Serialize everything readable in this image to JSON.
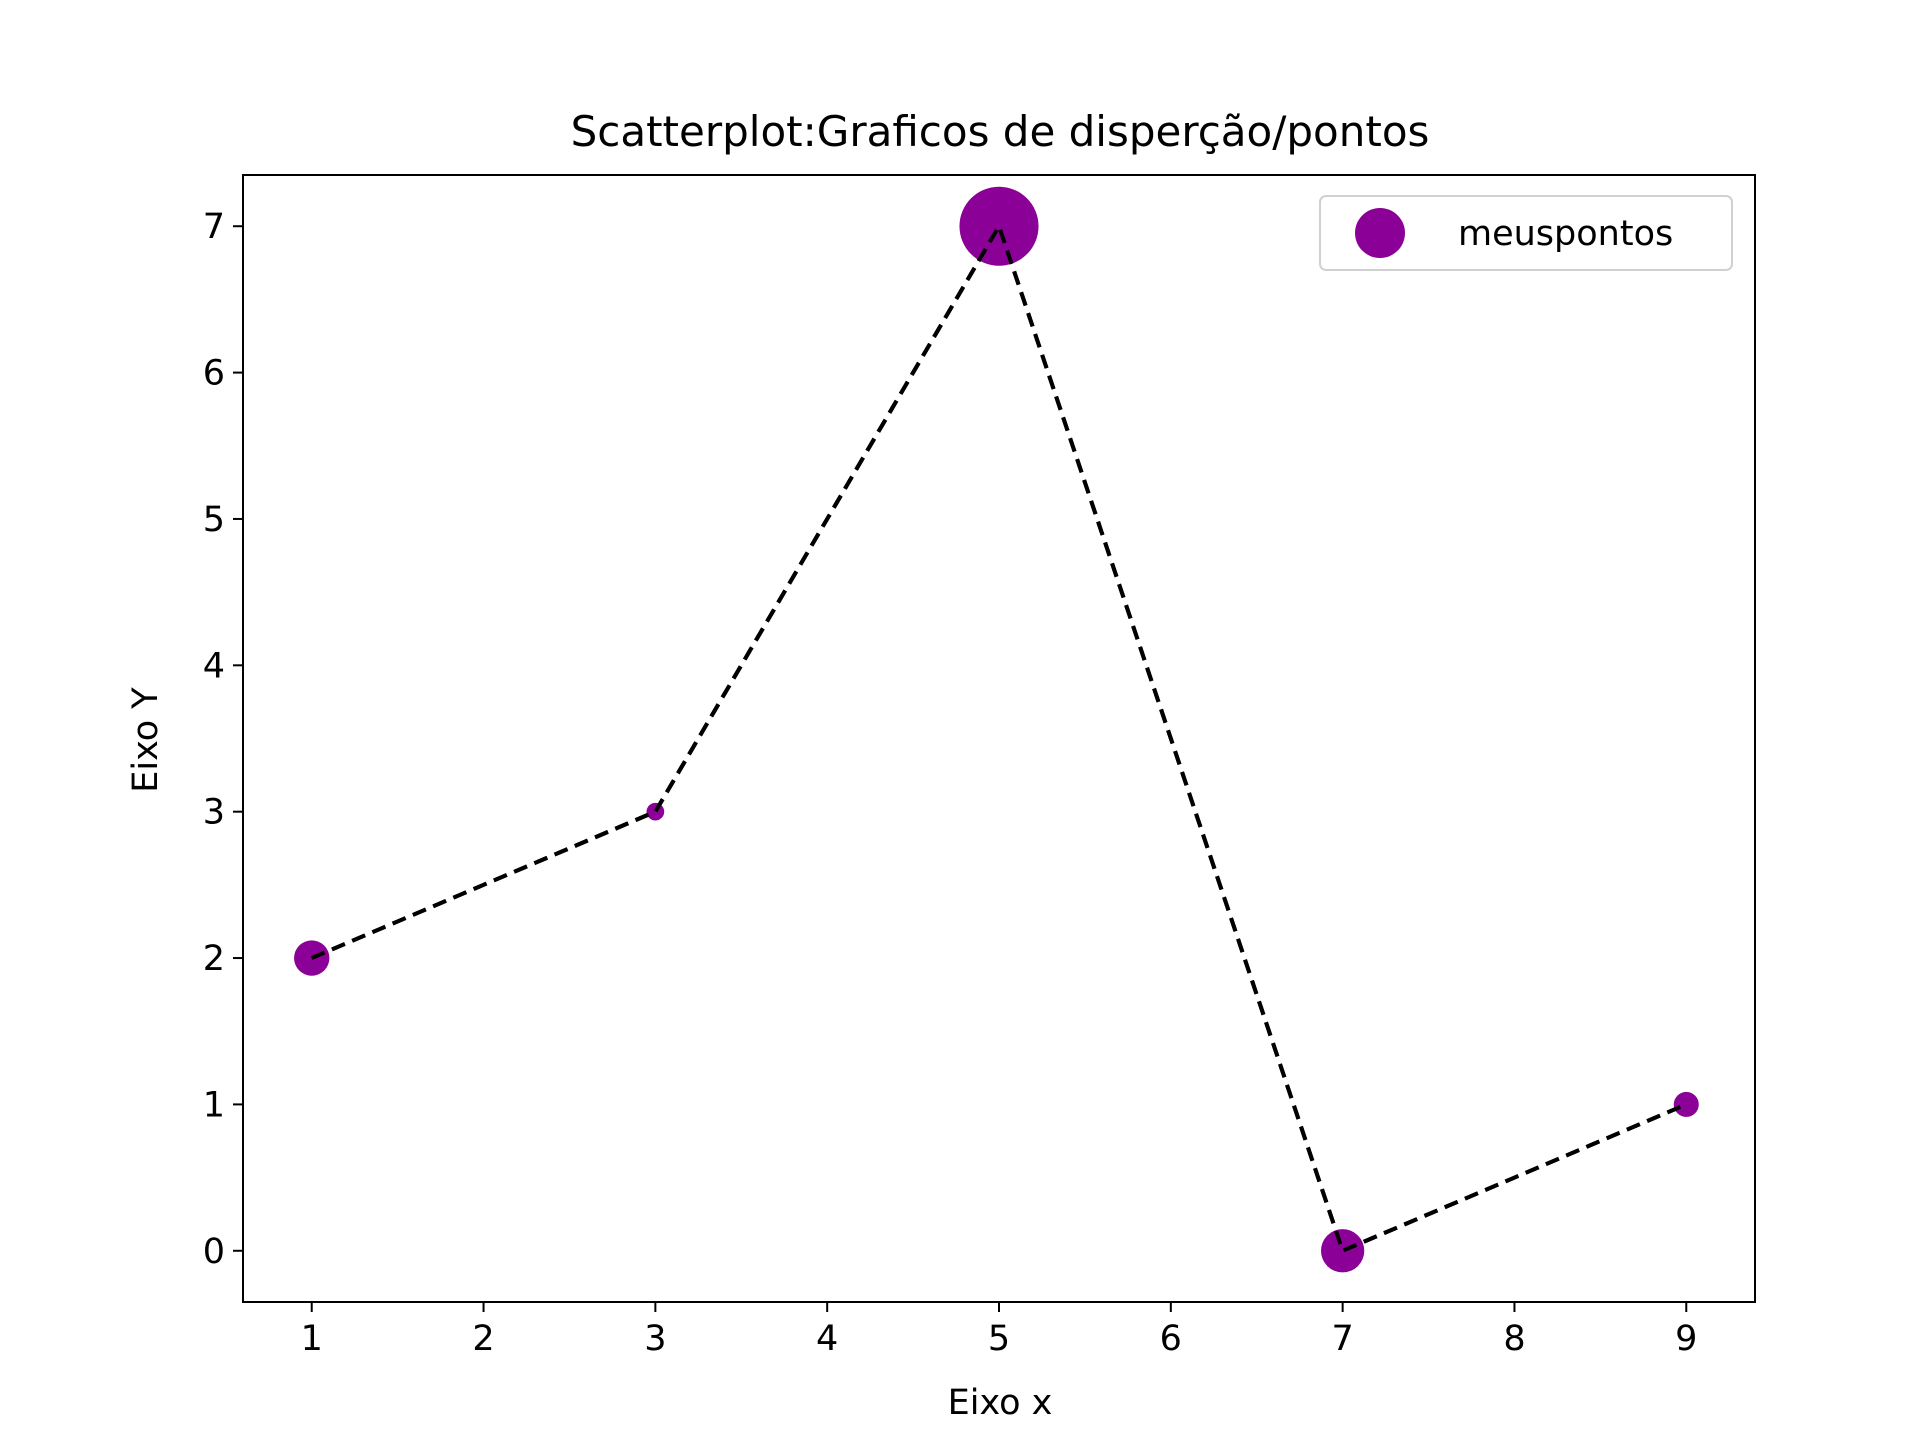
{
  "chart_data": {
    "type": "scatter",
    "title": "Scatterplot:Graficos de disperção/pontos",
    "xlabel": "Eixo x",
    "ylabel": "Eixo Y",
    "xlim": [
      0.6,
      9.4
    ],
    "ylim": [
      -0.35,
      7.35
    ],
    "xticks": [
      1,
      2,
      3,
      4,
      5,
      6,
      7,
      8,
      9
    ],
    "yticks": [
      0,
      1,
      2,
      3,
      4,
      5,
      6,
      7
    ],
    "grid": false,
    "legend_position": "top-right",
    "series": [
      {
        "name": "meuspontos",
        "color": "#8b0096",
        "x": [
          1,
          3,
          5,
          7,
          9
        ],
        "y": [
          2,
          3,
          7,
          0,
          1
        ],
        "sizes": [
          200,
          50,
          1000,
          300,
          100
        ]
      }
    ],
    "connector_line": {
      "style": "dashed",
      "color": "#000000"
    }
  }
}
